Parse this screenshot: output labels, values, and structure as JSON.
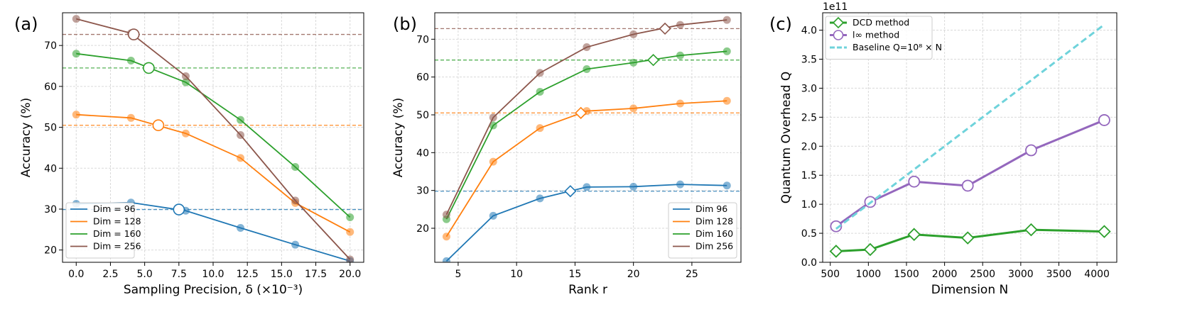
{
  "colors": {
    "dim96": "#1f77b4",
    "dim128": "#ff7f0e",
    "dim160": "#2ca02c",
    "dim256": "#8c564b",
    "dcd": "#2ca02c",
    "linf": "#9467bd",
    "baseline": "#6fd3db"
  },
  "chart_data": [
    {
      "panel": "(a)",
      "type": "line",
      "xlabel": "Sampling Precision, δ (×10⁻³)",
      "ylabel": "Accuracy (%)",
      "xlim": [
        -1,
        21
      ],
      "ylim": [
        17,
        78
      ],
      "xticks": [
        0.0,
        2.5,
        5.0,
        7.5,
        10.0,
        12.5,
        15.0,
        17.5,
        20.0
      ],
      "xtick_labels": [
        "0.0",
        "2.5",
        "5.0",
        "7.5",
        "10.0",
        "12.5",
        "15.0",
        "17.5",
        "20.0"
      ],
      "yticks": [
        20,
        30,
        40,
        50,
        60,
        70
      ],
      "ytick_labels": [
        "20",
        "30",
        "40",
        "50",
        "60",
        "70"
      ],
      "legend_position": "lower-left",
      "series": [
        {
          "name": "Dim = 96",
          "color": "#1f77b4",
          "x": [
            0,
            4,
            8,
            12,
            16,
            20
          ],
          "y": [
            31.3,
            31.6,
            29.6,
            25.4,
            21.3,
            17.3
          ],
          "baseline": 29.9,
          "crossing": [
            7.5,
            29.9
          ]
        },
        {
          "name": "Dim = 128",
          "color": "#ff7f0e",
          "x": [
            0,
            4,
            8,
            12,
            16,
            20
          ],
          "y": [
            53.1,
            52.3,
            48.5,
            42.5,
            31.5,
            24.4
          ],
          "baseline": 50.5,
          "crossing": [
            6.0,
            50.5
          ]
        },
        {
          "name": "Dim = 160",
          "color": "#2ca02c",
          "x": [
            0,
            4,
            8,
            12,
            16,
            20
          ],
          "y": [
            68.0,
            66.3,
            61.0,
            51.8,
            40.3,
            28.0
          ],
          "baseline": 64.5,
          "crossing": [
            5.3,
            64.5
          ]
        },
        {
          "name": "Dim = 256",
          "color": "#8c564b",
          "x": [
            0,
            4,
            8,
            12,
            16,
            20
          ],
          "y": [
            76.5,
            73.0,
            62.5,
            48.1,
            32.1,
            17.7
          ],
          "baseline": 72.7,
          "crossing": [
            4.2,
            72.7
          ]
        }
      ]
    },
    {
      "panel": "(b)",
      "type": "line",
      "xlabel": "Rank r",
      "ylabel": "Accuracy (%)",
      "xlim": [
        3,
        29.2
      ],
      "ylim": [
        11,
        77
      ],
      "xticks": [
        5,
        10,
        15,
        20,
        25
      ],
      "xtick_labels": [
        "5",
        "10",
        "15",
        "20",
        "25"
      ],
      "yticks": [
        20,
        30,
        40,
        50,
        60,
        70
      ],
      "ytick_labels": [
        "20",
        "30",
        "40",
        "50",
        "60",
        "70"
      ],
      "legend_position": "lower-right",
      "series": [
        {
          "name": "Dim 96",
          "color": "#1f77b4",
          "x": [
            4,
            8,
            12,
            16,
            20,
            24,
            28
          ],
          "y": [
            11.3,
            23.3,
            27.9,
            30.9,
            31.0,
            31.6,
            31.3
          ],
          "baseline": 29.8,
          "crossing": [
            14.6,
            29.8
          ]
        },
        {
          "name": "Dim 128",
          "color": "#ff7f0e",
          "x": [
            4,
            8,
            12,
            16,
            20,
            24,
            28
          ],
          "y": [
            17.8,
            37.6,
            46.5,
            51.0,
            51.7,
            53.0,
            53.7
          ],
          "baseline": 50.5,
          "crossing": [
            15.5,
            50.5
          ]
        },
        {
          "name": "Dim 160",
          "color": "#2ca02c",
          "x": [
            4,
            8,
            12,
            16,
            20,
            24,
            28
          ],
          "y": [
            22.4,
            47.2,
            56.1,
            62.1,
            63.8,
            65.7,
            66.8
          ],
          "baseline": 64.5,
          "crossing": [
            21.7,
            64.5
          ]
        },
        {
          "name": "Dim 256",
          "color": "#8c564b",
          "x": [
            4,
            8,
            12,
            16,
            20,
            24,
            28
          ],
          "y": [
            23.6,
            49.3,
            61.1,
            67.9,
            71.3,
            73.8,
            75.1
          ],
          "baseline": 72.8,
          "crossing": [
            22.7,
            72.8
          ]
        }
      ]
    },
    {
      "panel": "(c)",
      "type": "line",
      "xlabel": "Dimension N",
      "ylabel": "Quantum Overhead Q",
      "exponent_label": "1e11",
      "xlim": [
        400,
        4260
      ],
      "ylim": [
        0,
        4.3
      ],
      "xticks": [
        500,
        1000,
        1500,
        2000,
        2500,
        3000,
        3500,
        4000
      ],
      "xtick_labels": [
        "500",
        "1000",
        "1500",
        "2000",
        "2500",
        "3000",
        "3500",
        "4000"
      ],
      "yticks": [
        0.0,
        0.5,
        1.0,
        1.5,
        2.0,
        2.5,
        3.0,
        3.5,
        4.0
      ],
      "ytick_labels": [
        "0.0",
        "0.5",
        "1.0",
        "1.5",
        "2.0",
        "2.5",
        "3.0",
        "3.5",
        "4.0"
      ],
      "legend_position": "top-left",
      "series": [
        {
          "name": "DCD method",
          "color": "#2ca02c",
          "marker": "diamond",
          "x": [
            576,
            1024,
            1600,
            2304,
            3136,
            4096
          ],
          "y": [
            0.19,
            0.22,
            0.48,
            0.42,
            0.56,
            0.53
          ]
        },
        {
          "name": "l∞ method",
          "color": "#9467bd",
          "marker": "circle",
          "x": [
            576,
            1024,
            1600,
            2304,
            3136,
            4096
          ],
          "y": [
            0.62,
            1.04,
            1.39,
            1.32,
            1.93,
            2.45
          ]
        },
        {
          "name": "Baseline Q=10⁸ × N",
          "color": "#6fd3db",
          "marker": "none",
          "dashed": true,
          "x": [
            576,
            4096
          ],
          "y": [
            0.576,
            4.096
          ]
        }
      ]
    }
  ]
}
